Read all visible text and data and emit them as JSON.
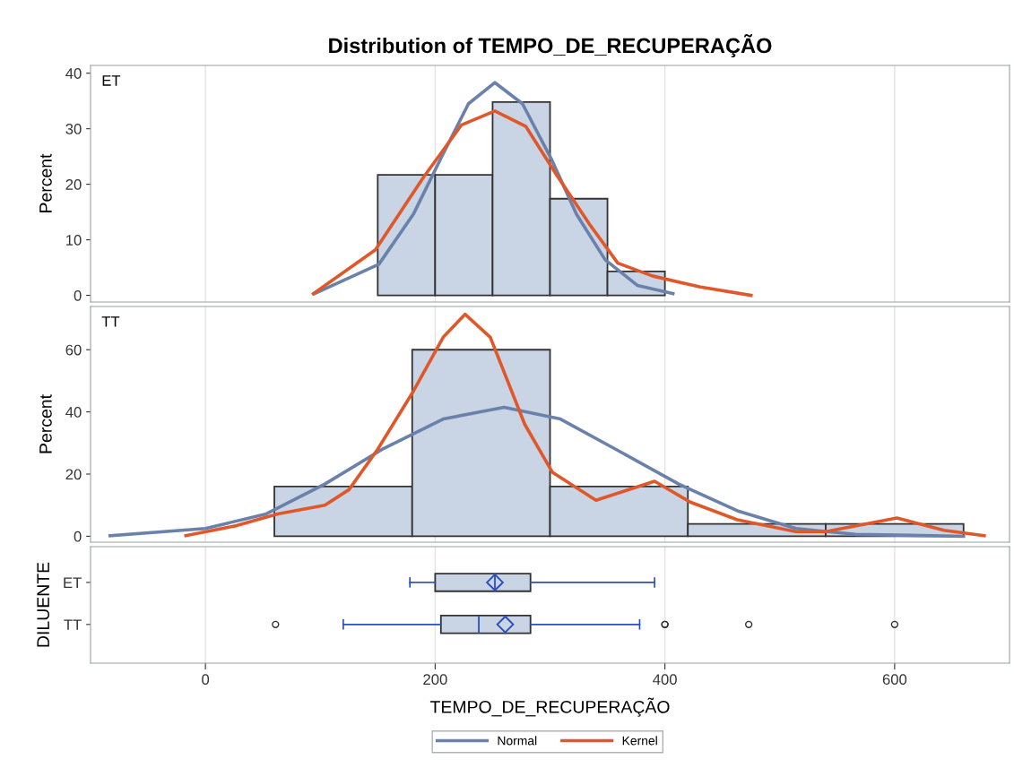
{
  "chart_data": [
    {
      "type": "histogram",
      "title": "Distribution of TEMPO_DE_RECUPERAÇÃO",
      "ylabel": "Percent",
      "annotations": [
        "ET"
      ],
      "bins": [
        150,
        200,
        250,
        300,
        350,
        400
      ],
      "values": [
        21.7,
        21.7,
        34.8,
        17.4,
        4.3
      ],
      "color": "#c9d4e5",
      "xlim": [
        -100,
        700
      ],
      "xticks": [
        0,
        200,
        400,
        600
      ],
      "ylim": [
        -1.2,
        41.4
      ],
      "yticks": [
        0,
        10,
        20,
        30,
        40
      ],
      "tick_labels": "y",
      "grid": "x",
      "legend": "bottom",
      "series": [
        {
          "name": "Normal",
          "type": "line",
          "color": "#6a82ab",
          "x": [
            95,
            151,
            181,
            206,
            229,
            252,
            276,
            301,
            323,
            348,
            376,
            407
          ],
          "values": [
            0.3,
            5.6,
            14.6,
            25.1,
            34.5,
            38.3,
            34.5,
            24.6,
            14.6,
            6.4,
            1.8,
            0.3
          ]
        },
        {
          "name": "Kernel",
          "type": "line",
          "color": "#e0582a",
          "x": [
            94,
            148,
            190,
            223,
            252,
            279,
            306,
            334,
            359,
            389,
            431,
            475
          ],
          "values": [
            0.3,
            8.2,
            21.3,
            30.7,
            33.2,
            30.4,
            21.6,
            12.9,
            5.8,
            3.5,
            1.5,
            0
          ]
        }
      ]
    },
    {
      "type": "histogram",
      "ylabel": "Percent",
      "annotations": [
        "TT"
      ],
      "bins": [
        60,
        180,
        300,
        420,
        540,
        660
      ],
      "values": [
        16,
        60,
        16,
        4,
        4
      ],
      "color": "#c9d4e5",
      "xlim": [
        -100,
        700
      ],
      "xticks": [
        0,
        200,
        400,
        600
      ],
      "ylim": [
        -1.9,
        73.9
      ],
      "yticks": [
        0,
        20,
        40,
        60
      ],
      "tick_labels": "y",
      "grid": "x",
      "legend": "bottom",
      "series": [
        {
          "name": "Normal",
          "type": "line",
          "color": "#6a82ab",
          "x": [
            -83,
            0,
            53,
            104,
            155,
            207,
            260,
            309,
            361,
            412,
            463,
            514,
            566,
            660
          ],
          "values": [
            0.2,
            2.5,
            7.2,
            16.8,
            28.2,
            37.7,
            41.5,
            37.7,
            27.2,
            16.8,
            8.2,
            2.5,
            0.6,
            0
          ]
        },
        {
          "name": "Kernel",
          "type": "line",
          "color": "#e0582a",
          "x": [
            -17,
            27,
            63,
            104,
            125,
            150,
            180,
            207,
            226,
            248,
            278,
            302,
            340,
            391,
            422,
            463,
            514,
            540,
            602,
            643,
            678
          ],
          "values": [
            0.2,
            3.4,
            7.2,
            10,
            15,
            28,
            46,
            64,
            71.4,
            64,
            36,
            20.6,
            11.6,
            17.7,
            11,
            5.3,
            1.5,
            1.5,
            5.9,
            1.9,
            0.2
          ]
        }
      ]
    },
    {
      "type": "box",
      "orientation": "horizontal",
      "xlabel": "TEMPO_DE_RECUPERAÇÃO",
      "ylabel": "DILUENTE",
      "categories": [
        "ET",
        "TT"
      ],
      "color": "#c9d4e5",
      "xlim": [
        -100,
        700
      ],
      "xticks": [
        0,
        200,
        400,
        600
      ],
      "grid": "x",
      "boxes": [
        {
          "low": 178,
          "q1": 200,
          "median": 252,
          "q3": 283,
          "high": 391,
          "mean": 252
        },
        {
          "low": 120,
          "q1": 205,
          "median": 238,
          "q3": 283,
          "high": 378,
          "mean": 261,
          "outliers": [
            61,
            400,
            400,
            473,
            600
          ]
        }
      ]
    }
  ]
}
